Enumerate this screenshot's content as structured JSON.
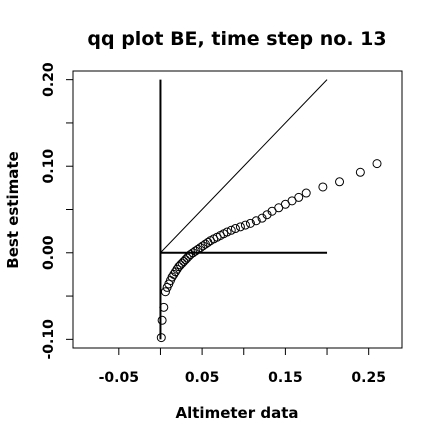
{
  "chart_data": {
    "type": "scatter",
    "title": "qq plot BE, time step no. 13",
    "xlabel": "Altimeter data",
    "ylabel": "Best estimate",
    "xlim": [
      -0.105,
      0.29
    ],
    "ylim": [
      -0.11,
      0.21
    ],
    "xticks": [
      -0.05,
      0.0,
      0.05,
      0.1,
      0.15,
      0.2,
      0.25
    ],
    "xtick_labels": [
      "-0.05",
      "",
      "0.05",
      "",
      "0.15",
      "",
      "0.25"
    ],
    "yticks": [
      -0.1,
      -0.05,
      0.0,
      0.05,
      0.1,
      0.15,
      0.2
    ],
    "ytick_labels": [
      "-0.10",
      "",
      "0.00",
      "",
      "0.10",
      "",
      "0.20"
    ],
    "grid": false,
    "legend": "none",
    "marker": "open-circle",
    "reference_lines": {
      "vertical_x": 0.0,
      "vertical_y_range": [
        -0.1,
        0.2
      ],
      "horizontal_y": 0.0,
      "horizontal_x_range": [
        0.0,
        0.2
      ],
      "identity_x_range": [
        0.0,
        0.2
      ]
    },
    "points": [
      {
        "x": 0.001,
        "y": -0.098
      },
      {
        "x": 0.002,
        "y": -0.078
      },
      {
        "x": 0.004,
        "y": -0.063
      },
      {
        "x": 0.006,
        "y": -0.045
      },
      {
        "x": 0.008,
        "y": -0.04
      },
      {
        "x": 0.01,
        "y": -0.036
      },
      {
        "x": 0.012,
        "y": -0.032
      },
      {
        "x": 0.014,
        "y": -0.028
      },
      {
        "x": 0.016,
        "y": -0.025
      },
      {
        "x": 0.018,
        "y": -0.022
      },
      {
        "x": 0.02,
        "y": -0.019
      },
      {
        "x": 0.022,
        "y": -0.016
      },
      {
        "x": 0.024,
        "y": -0.014
      },
      {
        "x": 0.026,
        "y": -0.012
      },
      {
        "x": 0.028,
        "y": -0.01
      },
      {
        "x": 0.03,
        "y": -0.008
      },
      {
        "x": 0.032,
        "y": -0.006
      },
      {
        "x": 0.034,
        "y": -0.004
      },
      {
        "x": 0.036,
        "y": -0.002
      },
      {
        "x": 0.039,
        "y": 0.0
      },
      {
        "x": 0.042,
        "y": 0.002
      },
      {
        "x": 0.045,
        "y": 0.004
      },
      {
        "x": 0.048,
        "y": 0.006
      },
      {
        "x": 0.051,
        "y": 0.008
      },
      {
        "x": 0.054,
        "y": 0.01
      },
      {
        "x": 0.057,
        "y": 0.012
      },
      {
        "x": 0.06,
        "y": 0.014
      },
      {
        "x": 0.064,
        "y": 0.016
      },
      {
        "x": 0.068,
        "y": 0.018
      },
      {
        "x": 0.072,
        "y": 0.02
      },
      {
        "x": 0.076,
        "y": 0.022
      },
      {
        "x": 0.08,
        "y": 0.024
      },
      {
        "x": 0.085,
        "y": 0.026
      },
      {
        "x": 0.09,
        "y": 0.028
      },
      {
        "x": 0.096,
        "y": 0.03
      },
      {
        "x": 0.102,
        "y": 0.032
      },
      {
        "x": 0.108,
        "y": 0.034
      },
      {
        "x": 0.115,
        "y": 0.037
      },
      {
        "x": 0.122,
        "y": 0.04
      },
      {
        "x": 0.128,
        "y": 0.044
      },
      {
        "x": 0.134,
        "y": 0.048
      },
      {
        "x": 0.142,
        "y": 0.052
      },
      {
        "x": 0.15,
        "y": 0.056
      },
      {
        "x": 0.158,
        "y": 0.06
      },
      {
        "x": 0.166,
        "y": 0.064
      },
      {
        "x": 0.175,
        "y": 0.069
      },
      {
        "x": 0.195,
        "y": 0.076
      },
      {
        "x": 0.215,
        "y": 0.082
      },
      {
        "x": 0.24,
        "y": 0.093
      },
      {
        "x": 0.26,
        "y": 0.103
      }
    ]
  }
}
